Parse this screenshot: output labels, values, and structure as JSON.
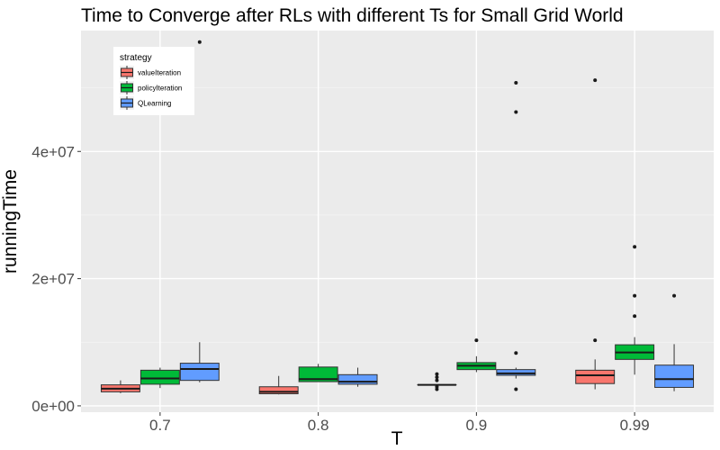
{
  "chart_data": {
    "type": "boxplot",
    "title": "Time to Converge after RLs with different Ts for Small Grid World",
    "xlabel": "T",
    "ylabel": "runningTime",
    "categories": [
      "0.7",
      "0.8",
      "0.9",
      "0.99"
    ],
    "y_ticks": [
      0,
      20000000,
      40000000
    ],
    "y_tick_labels": [
      "0e+00",
      "2e+07",
      "4e+07"
    ],
    "ylim": [
      -1000000,
      59000000
    ],
    "grid": true,
    "legend": {
      "title": "strategy",
      "position": "top-left"
    },
    "series": [
      {
        "name": "valueIteration",
        "color": "#f8766d",
        "boxes": [
          {
            "category": "0.7",
            "min": 2000000,
            "q1": 2200000,
            "median": 2700000,
            "q3": 3300000,
            "max": 4000000,
            "outliers": []
          },
          {
            "category": "0.8",
            "min": 1800000,
            "q1": 1900000,
            "median": 2200000,
            "q3": 3000000,
            "max": 4700000,
            "outliers": []
          },
          {
            "category": "0.9",
            "min": 3300000,
            "q1": 3300000,
            "median": 3300000,
            "q3": 3300000,
            "max": 3300000,
            "outliers": [
              2600000,
              3000000,
              4000000,
              4500000,
              5000000
            ]
          },
          {
            "category": "0.99",
            "min": 2600000,
            "q1": 3500000,
            "median": 4800000,
            "q3": 5600000,
            "max": 7300000,
            "outliers": [
              10300000,
              51200000
            ]
          }
        ]
      },
      {
        "name": "policyIteration",
        "color": "#00ba38",
        "boxes": [
          {
            "category": "0.7",
            "min": 2800000,
            "q1": 3400000,
            "median": 4300000,
            "q3": 5600000,
            "max": 6000000,
            "outliers": []
          },
          {
            "category": "0.8",
            "min": 3800000,
            "q1": 3800000,
            "median": 4200000,
            "q3": 6100000,
            "max": 6600000,
            "outliers": []
          },
          {
            "category": "0.9",
            "min": 5300000,
            "q1": 5700000,
            "median": 6300000,
            "q3": 6800000,
            "max": 7800000,
            "outliers": [
              10300000
            ]
          },
          {
            "category": "0.99",
            "min": 4900000,
            "q1": 7300000,
            "median": 8400000,
            "q3": 9600000,
            "max": 10800000,
            "outliers": [
              14100000,
              17300000,
              25000000
            ]
          }
        ]
      },
      {
        "name": "QLearning",
        "color": "#619cff",
        "boxes": [
          {
            "category": "0.7",
            "min": 3700000,
            "q1": 4000000,
            "median": 5800000,
            "q3": 6700000,
            "max": 10000000,
            "outliers": [
              57200000
            ]
          },
          {
            "category": "0.8",
            "min": 3000000,
            "q1": 3400000,
            "median": 3800000,
            "q3": 4900000,
            "max": 6000000,
            "outliers": []
          },
          {
            "category": "0.9",
            "min": 4300000,
            "q1": 4800000,
            "median": 5100000,
            "q3": 5700000,
            "max": 6000000,
            "outliers": [
              2600000,
              8300000,
              46200000,
              50800000
            ]
          },
          {
            "category": "0.99",
            "min": 2300000,
            "q1": 2900000,
            "median": 4200000,
            "q3": 6400000,
            "max": 9700000,
            "outliers": [
              17300000
            ]
          }
        ]
      }
    ]
  }
}
